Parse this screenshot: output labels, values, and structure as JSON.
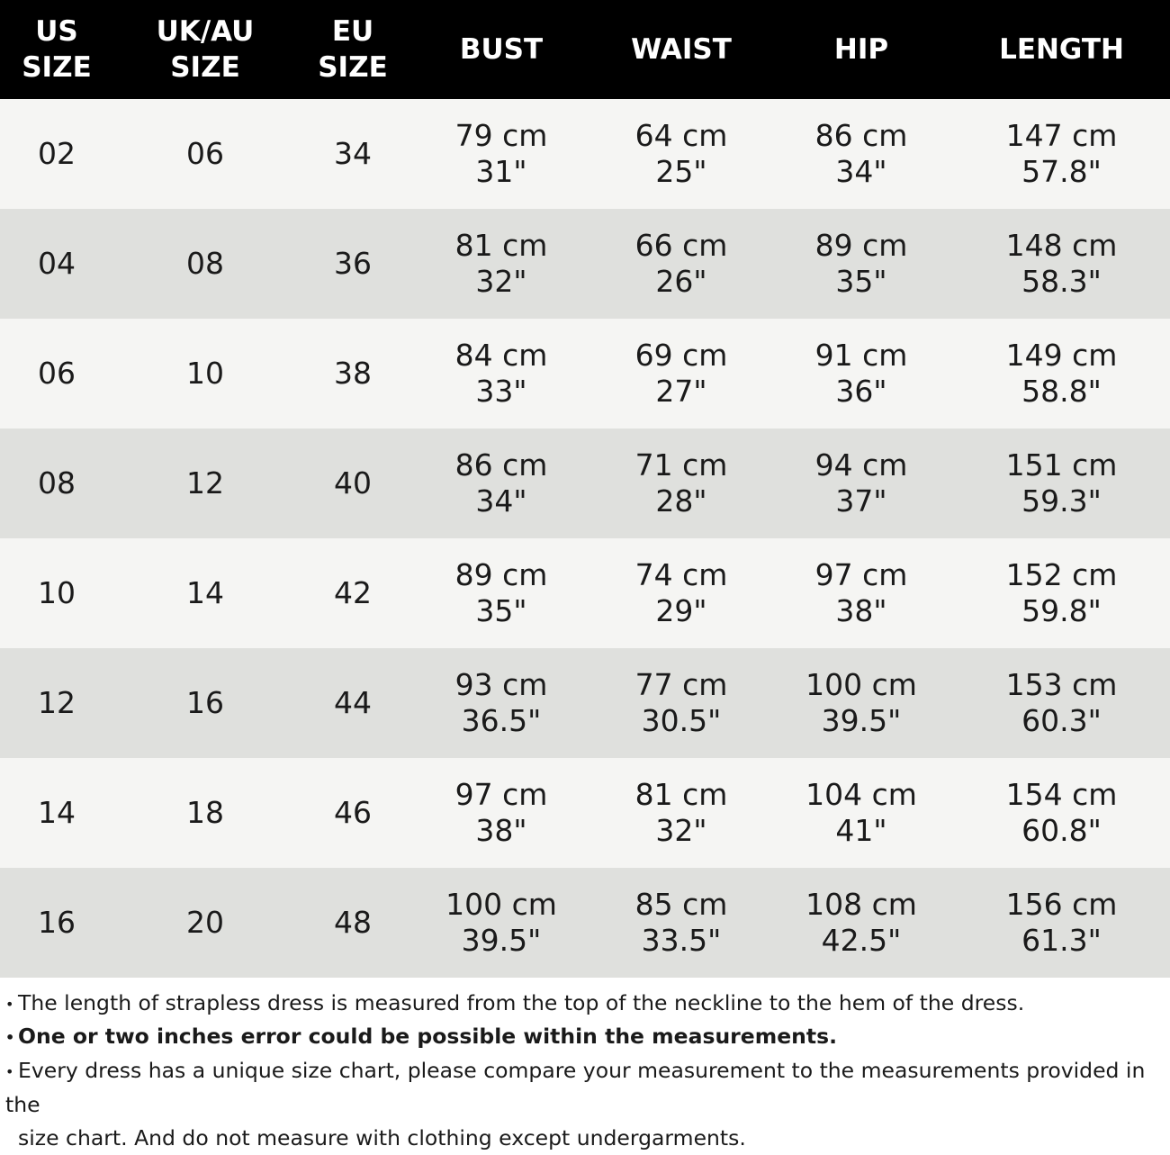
{
  "header": {
    "us_size": "US\nSIZE",
    "uk_au_size": "UK/AU\nSIZE",
    "eu_size": "EU\nSIZE",
    "bust": "BUST",
    "waist": "WAIST",
    "hip": "HIP",
    "length": "LENGTH"
  },
  "rows": [
    {
      "us": "02",
      "uk": "06",
      "eu": "34",
      "bust_cm": "79 cm",
      "bust_in": "31\"",
      "waist_cm": "64 cm",
      "waist_in": "25\"",
      "hip_cm": "86 cm",
      "hip_in": "34\"",
      "length_cm": "147 cm",
      "length_in": "57.8\""
    },
    {
      "us": "04",
      "uk": "08",
      "eu": "36",
      "bust_cm": "81 cm",
      "bust_in": "32\"",
      "waist_cm": "66 cm",
      "waist_in": "26\"",
      "hip_cm": "89 cm",
      "hip_in": "35\"",
      "length_cm": "148 cm",
      "length_in": "58.3\""
    },
    {
      "us": "06",
      "uk": "10",
      "eu": "38",
      "bust_cm": "84 cm",
      "bust_in": "33\"",
      "waist_cm": "69 cm",
      "waist_in": "27\"",
      "hip_cm": "91 cm",
      "hip_in": "36\"",
      "length_cm": "149 cm",
      "length_in": "58.8\""
    },
    {
      "us": "08",
      "uk": "12",
      "eu": "40",
      "bust_cm": "86 cm",
      "bust_in": "34\"",
      "waist_cm": "71 cm",
      "waist_in": "28\"",
      "hip_cm": "94 cm",
      "hip_in": "37\"",
      "length_cm": "151 cm",
      "length_in": "59.3\""
    },
    {
      "us": "10",
      "uk": "14",
      "eu": "42",
      "bust_cm": "89 cm",
      "bust_in": "35\"",
      "waist_cm": "74 cm",
      "waist_in": "29\"",
      "hip_cm": "97 cm",
      "hip_in": "38\"",
      "length_cm": "152 cm",
      "length_in": "59.8\""
    },
    {
      "us": "12",
      "uk": "16",
      "eu": "44",
      "bust_cm": "93 cm",
      "bust_in": "36.5\"",
      "waist_cm": "77 cm",
      "waist_in": "30.5\"",
      "hip_cm": "100 cm",
      "hip_in": "39.5\"",
      "length_cm": "153 cm",
      "length_in": "60.3\""
    },
    {
      "us": "14",
      "uk": "18",
      "eu": "46",
      "bust_cm": "97 cm",
      "bust_in": "38\"",
      "waist_cm": "81 cm",
      "waist_in": "32\"",
      "hip_cm": "104 cm",
      "hip_in": "41\"",
      "length_cm": "154 cm",
      "length_in": "60.8\""
    },
    {
      "us": "16",
      "uk": "20",
      "eu": "48",
      "bust_cm": "100 cm",
      "bust_in": "39.5\"",
      "waist_cm": "85 cm",
      "waist_in": "33.5\"",
      "hip_cm": "108 cm",
      "hip_in": "42.5\"",
      "length_cm": "156 cm",
      "length_in": "61.3\""
    }
  ],
  "notes": {
    "bullet": "•",
    "note1": "The length of strapless dress is measured from the top of the neckline to the hem of the dress.",
    "note2": "One or two inches error could be possible within the measurements.",
    "note3_line1": "Every dress has a unique size chart, please compare your measurement to the measurements provided in the",
    "note3_line2": "size chart. And do not measure with clothing except undergarments."
  },
  "colors": {
    "header_bg": "#000000",
    "row_light": "#f5f5f3",
    "row_dark": "#dfe0dd",
    "text": "#1a1a1a"
  }
}
